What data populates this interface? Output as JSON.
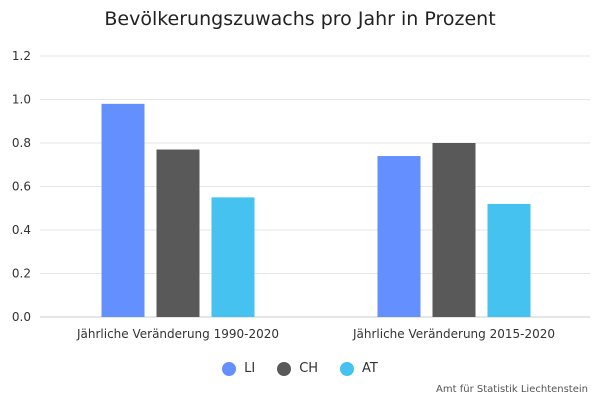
{
  "chart_data": {
    "type": "bar",
    "title": "Bevölkerungszuwachs pro Jahr in Prozent",
    "categories": [
      "Jährliche Veränderung 1990-2020",
      "Jährliche Veränderung 2015-2020"
    ],
    "series": [
      {
        "name": "LI",
        "values": [
          0.98,
          0.74
        ],
        "color": "#648fff"
      },
      {
        "name": "CH",
        "values": [
          0.77,
          0.8
        ],
        "color": "#595959"
      },
      {
        "name": "AT",
        "values": [
          0.55,
          0.52
        ],
        "color": "#45c2f0"
      }
    ],
    "ylim": [
      0,
      1.2
    ],
    "yticks": [
      "0.0",
      "0.2",
      "0.4",
      "0.6",
      "0.8",
      "1.0",
      "1.2"
    ],
    "grid": true,
    "legend_position": "bottom-center",
    "source": "Amt für Statistik Liechtenstein"
  }
}
